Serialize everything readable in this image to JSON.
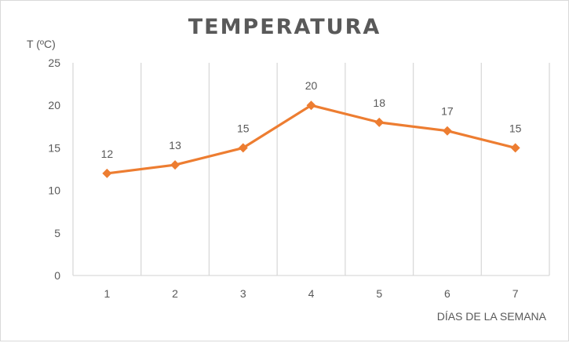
{
  "chart_data": {
    "type": "line",
    "title": "TEMPERATURA",
    "ylabel": "T (ºC)",
    "xlabel": "DÍAS DE LA SEMANA",
    "categories": [
      "1",
      "2",
      "3",
      "4",
      "5",
      "6",
      "7"
    ],
    "series": [
      {
        "values": [
          12,
          13,
          15,
          20,
          18,
          17,
          15
        ]
      }
    ],
    "ylim": [
      0,
      25
    ],
    "yticks": [
      0,
      5,
      10,
      15,
      20,
      25
    ],
    "grid": "vertical",
    "data_labels": true,
    "legend": "none",
    "colors": {
      "line": "#ED7D31",
      "grid": "#d9d9d9",
      "text": "#595959"
    },
    "marker": "diamond"
  }
}
